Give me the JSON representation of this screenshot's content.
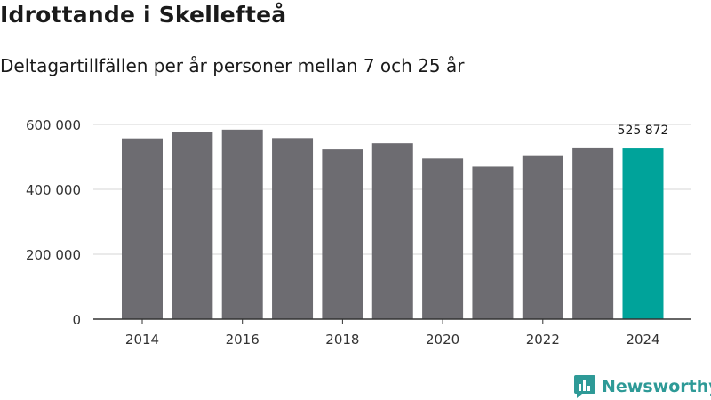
{
  "header": {
    "title": "Idrottande i Skellefteå",
    "subtitle": "Deltagartillfällen per år personer mellan 7 och 25 år"
  },
  "brand": {
    "name": "Newsworthy",
    "icon": "bar-chart-chat-icon"
  },
  "colors": {
    "bar": "#6d6c71",
    "highlight": "#00a39a",
    "grid": "#d6d6d6",
    "axis": "#333333",
    "brand": "#2e9a97"
  },
  "chart_data": {
    "type": "bar",
    "title": "Idrottande i Skellefteå",
    "subtitle": "Deltagartillfällen per år personer mellan 7 och 25 år",
    "xlabel": "",
    "ylabel": "",
    "categories": [
      "2014",
      "2015",
      "2016",
      "2017",
      "2018",
      "2019",
      "2020",
      "2021",
      "2022",
      "2023",
      "2024"
    ],
    "values": [
      557000,
      576000,
      584000,
      558000,
      523000,
      542000,
      495000,
      470000,
      505000,
      529000,
      525872
    ],
    "highlight_index": 10,
    "ylim": [
      0,
      600000
    ],
    "yticks": [
      0,
      200000,
      400000,
      600000
    ],
    "ytick_labels": [
      "0",
      "200 000",
      "400 000",
      "600 000"
    ],
    "xtick_labels": [
      "2014",
      "2016",
      "2018",
      "2020",
      "2022",
      "2024"
    ],
    "grid": true,
    "annotations": [
      {
        "category": "2024",
        "label": "525 872"
      }
    ]
  }
}
